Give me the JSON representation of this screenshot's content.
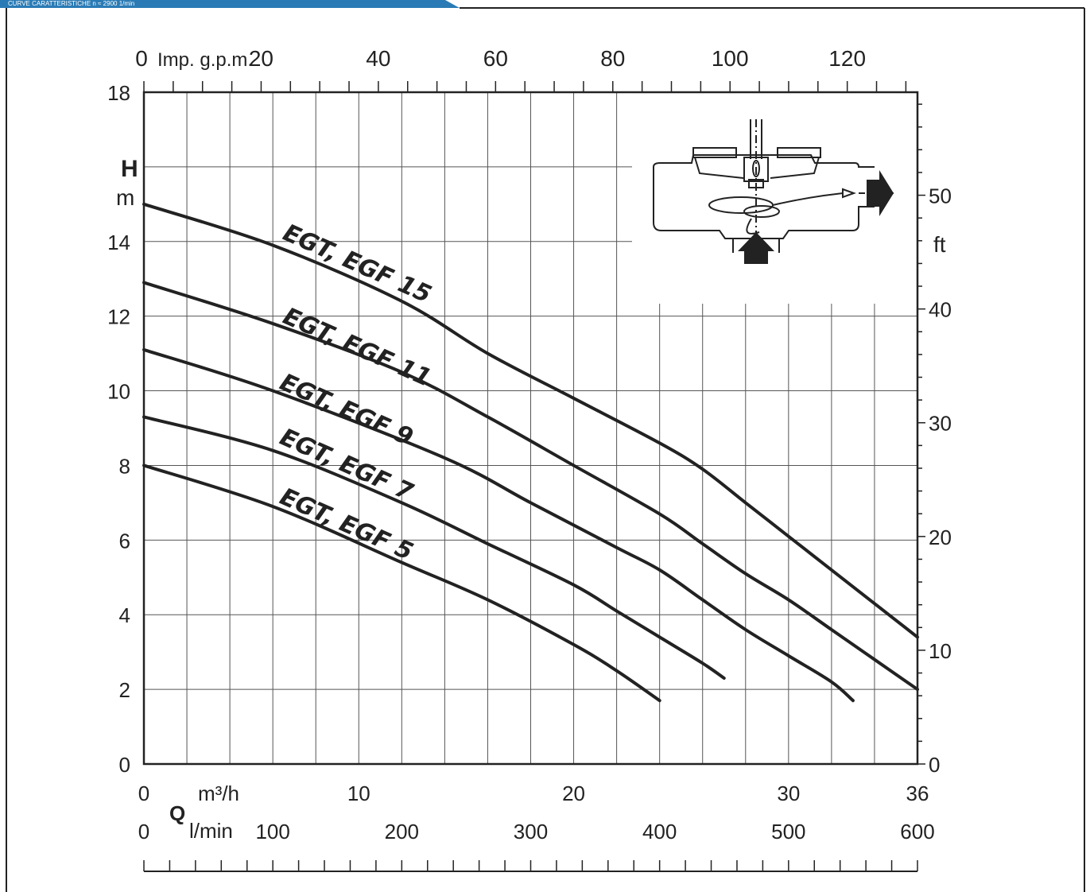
{
  "header": {
    "tab_text": "CURVE CARATTERISTICHE n ≈ 2900 1/min",
    "tab_color": "#2a7bb5"
  },
  "chart_data": {
    "type": "line",
    "title": "",
    "xlabel": "Q",
    "ylabel": "H",
    "y_unit_left": "m",
    "y_unit_right": "ft",
    "x_unit_m3h": "m³/h",
    "x_unit_lmin": "l/min",
    "x_unit_impgpm": "Imp. g.p.m.",
    "xlim": [
      0,
      36
    ],
    "ylim": [
      0,
      18
    ],
    "grid": true,
    "axes": {
      "left_m_ticks": [
        "0",
        "2",
        "4",
        "6",
        "8",
        "10",
        "12",
        "14",
        "18"
      ],
      "left_m_values": [
        0,
        2,
        4,
        6,
        8,
        10,
        12,
        14,
        18
      ],
      "right_ft_ticks": [
        "0",
        "10",
        "20",
        "30",
        "40",
        "50"
      ],
      "right_ft_values": [
        0,
        10,
        20,
        30,
        40,
        50
      ],
      "bottom_m3h_ticks": [
        "0",
        "10",
        "20",
        "30",
        "36"
      ],
      "bottom_m3h_values": [
        0,
        10,
        20,
        30,
        36
      ],
      "bottom_lmin_ticks": [
        "0",
        "100",
        "200",
        "300",
        "400",
        "500",
        "600"
      ],
      "bottom_lmin_values": [
        0,
        100,
        200,
        300,
        400,
        500,
        600
      ],
      "top_impgpm_ticks": [
        "0",
        "20",
        "40",
        "60",
        "80",
        "100",
        "120"
      ],
      "top_impgpm_values": [
        0,
        20,
        40,
        60,
        80,
        100,
        120
      ]
    },
    "series": [
      {
        "name": "EGT, EGF 15",
        "x": [
          0,
          6,
          12,
          16,
          20,
          24,
          26,
          28,
          30,
          32,
          34,
          36
        ],
        "y": [
          15,
          13.9,
          12.4,
          11,
          9.8,
          8.6,
          7.9,
          7,
          6.1,
          5.2,
          4.3,
          3.4
        ]
      },
      {
        "name": "EGT, EGF 11",
        "x": [
          0,
          6,
          12,
          16,
          20,
          24,
          26,
          28,
          30,
          32,
          34,
          36
        ],
        "y": [
          12.9,
          11.8,
          10.5,
          9.3,
          8,
          6.7,
          5.9,
          5.1,
          4.4,
          3.6,
          2.8,
          2
        ]
      },
      {
        "name": "EGT, EGF 9",
        "x": [
          0,
          6,
          14,
          18,
          22,
          24,
          26,
          28,
          30,
          32,
          33
        ],
        "y": [
          11.1,
          10,
          8.2,
          7,
          5.8,
          5.2,
          4.4,
          3.6,
          2.9,
          2.2,
          1.7
        ]
      },
      {
        "name": "EGT, EGF 7",
        "x": [
          0,
          6,
          12,
          16,
          20,
          22,
          24,
          26,
          27
        ],
        "y": [
          9.3,
          8.4,
          7,
          5.9,
          4.8,
          4.1,
          3.4,
          2.7,
          2.3
        ]
      },
      {
        "name": "EGT, EGF 5",
        "x": [
          0,
          6,
          12,
          16,
          20,
          22,
          24
        ],
        "y": [
          8,
          6.9,
          5.4,
          4.4,
          3.2,
          2.5,
          1.7
        ]
      }
    ],
    "diagram_icons": [
      "impeller-cross-section-icon",
      "outlet-arrow-icon",
      "inlet-arrow-icon"
    ]
  }
}
